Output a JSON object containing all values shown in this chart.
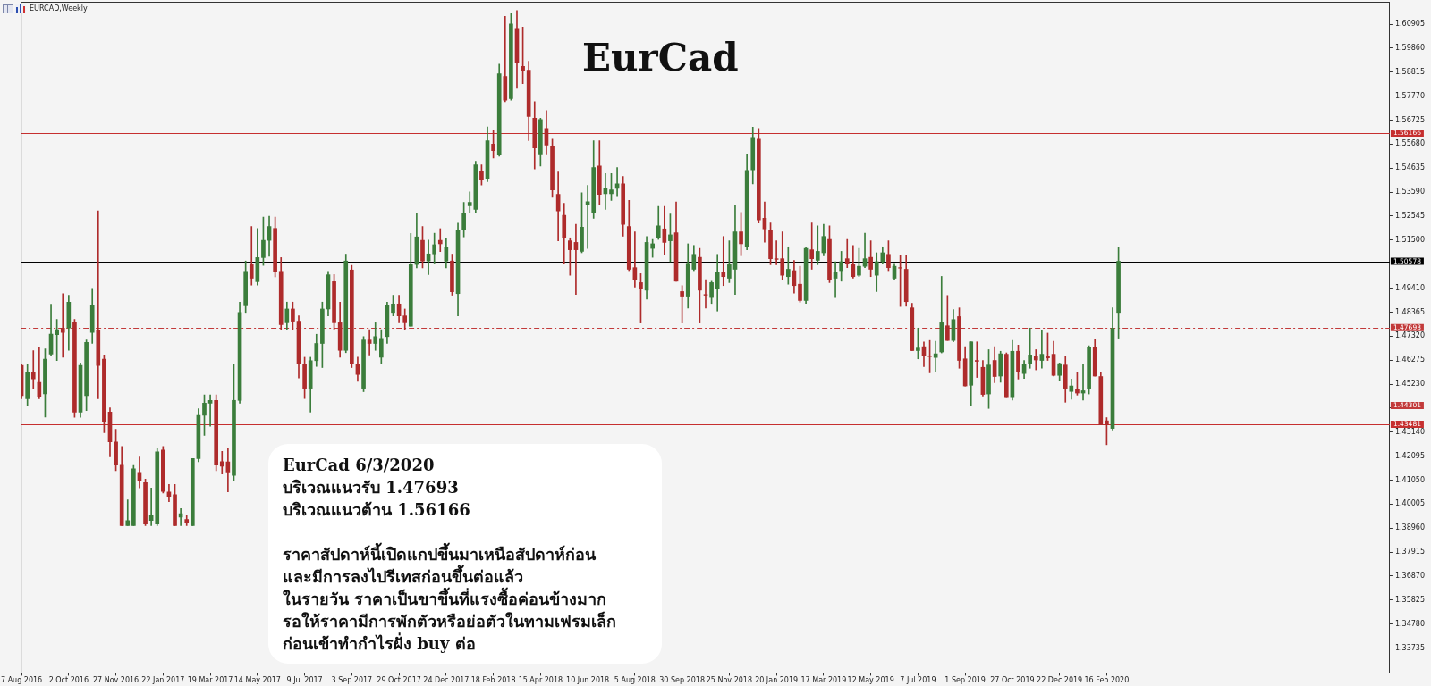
{
  "chart_data": {
    "type": "candlestick",
    "title": "EurCad",
    "subtitle": "EURCAD,Weekly",
    "annotations": [
      "EurCad 6/3/2020",
      "บริเวณแนวรับ 1.47693",
      "บริเวณแนวต้าน 1.56166",
      "ราคาสัปดาห์นี้เปิดแกปขึ้นมาเหนือสัปดาห์ก่อน",
      "และมีการลงไปรีเทสก่อนขึ้นต่อแล้ว",
      "ในรายวัน ราคาเป็นขาขึ้นที่แรงซื้อค่อนข้างมาก",
      "รอให้ราคามีการพักตัวหรือย่อตัวในทามเฟรมเล็ก",
      "ก่อนเข้าทำกำไรฝั่ง buy ต่อ"
    ],
    "x": [
      "2016-08-07",
      "2016-08-14",
      "2016-08-21",
      "2016-08-28",
      "2016-09-04",
      "2016-09-11",
      "2016-09-18",
      "2016-09-25",
      "2016-10-02",
      "2016-10-09",
      "2016-10-16",
      "2016-10-23",
      "2016-10-30",
      "2016-11-06",
      "2016-11-13",
      "2016-11-20",
      "2016-11-27",
      "2016-12-04",
      "2016-12-11",
      "2016-12-18",
      "2016-12-25",
      "2017-01-01",
      "2017-01-08",
      "2017-01-15",
      "2017-01-22",
      "2017-01-29",
      "2017-02-05",
      "2017-02-12",
      "2017-02-19",
      "2017-02-26",
      "2017-03-05",
      "2017-03-12",
      "2017-03-19",
      "2017-03-26",
      "2017-04-02",
      "2017-04-09",
      "2017-04-16",
      "2017-04-23",
      "2017-04-30",
      "2017-05-07",
      "2017-05-14",
      "2017-05-21",
      "2017-05-28",
      "2017-06-04",
      "2017-06-11",
      "2017-06-18",
      "2017-06-25",
      "2017-07-02",
      "2017-07-09",
      "2017-07-16",
      "2017-07-23",
      "2017-07-30",
      "2017-08-06",
      "2017-08-13",
      "2017-08-20",
      "2017-08-27",
      "2017-09-03",
      "2017-09-10",
      "2017-09-17",
      "2017-09-24",
      "2017-10-01",
      "2017-10-08",
      "2017-10-15",
      "2017-10-22",
      "2017-10-29",
      "2017-11-05",
      "2017-11-12",
      "2017-11-19",
      "2017-11-26",
      "2017-12-03",
      "2017-12-10",
      "2017-12-17",
      "2017-12-24",
      "2017-12-31",
      "2018-01-07",
      "2018-01-14",
      "2018-01-21",
      "2018-01-28",
      "2018-02-04",
      "2018-02-11",
      "2018-02-18",
      "2018-02-25",
      "2018-03-04",
      "2018-03-11",
      "2018-03-18",
      "2018-03-25",
      "2018-04-01",
      "2018-04-08",
      "2018-04-15",
      "2018-04-22",
      "2018-04-29",
      "2018-05-06",
      "2018-05-13",
      "2018-05-20",
      "2018-05-27",
      "2018-06-03",
      "2018-06-10",
      "2018-06-17",
      "2018-06-24",
      "2018-07-01",
      "2018-07-08",
      "2018-07-15",
      "2018-07-22",
      "2018-07-29",
      "2018-08-05",
      "2018-08-12",
      "2018-08-19",
      "2018-08-26",
      "2018-09-02",
      "2018-09-09",
      "2018-09-16",
      "2018-09-23",
      "2018-09-30",
      "2018-10-07",
      "2018-10-14",
      "2018-10-21",
      "2018-10-28",
      "2018-11-04",
      "2018-11-11",
      "2018-11-18",
      "2018-11-25",
      "2018-12-02",
      "2018-12-09",
      "2018-12-16",
      "2018-12-23",
      "2018-12-30",
      "2019-01-06",
      "2019-01-13",
      "2019-01-20",
      "2019-01-27",
      "2019-02-03",
      "2019-02-10",
      "2019-02-17",
      "2019-02-24",
      "2019-03-03",
      "2019-03-10",
      "2019-03-17",
      "2019-03-24",
      "2019-03-31",
      "2019-04-07",
      "2019-04-14",
      "2019-04-21",
      "2019-04-28",
      "2019-05-05",
      "2019-05-12",
      "2019-05-19",
      "2019-05-26",
      "2019-06-02",
      "2019-06-09",
      "2019-06-16",
      "2019-06-23",
      "2019-06-30",
      "2019-07-07",
      "2019-07-14",
      "2019-07-21",
      "2019-07-28",
      "2019-08-04",
      "2019-08-11",
      "2019-08-18",
      "2019-08-25",
      "2019-09-01",
      "2019-09-08",
      "2019-09-15",
      "2019-09-22",
      "2019-09-29",
      "2019-10-06",
      "2019-10-13",
      "2019-10-20",
      "2019-10-27",
      "2019-11-03",
      "2019-11-10",
      "2019-11-17",
      "2019-11-24",
      "2019-12-01",
      "2019-12-08",
      "2019-12-15",
      "2019-12-22",
      "2019-12-29",
      "2020-01-05",
      "2020-01-12",
      "2020-01-19",
      "2020-01-26",
      "2020-02-02",
      "2020-02-09",
      "2020-02-16",
      "2020-02-23",
      "2020-03-01"
    ],
    "ohlc": [
      [
        1.4604,
        1.4611,
        1.4459,
        1.4473
      ],
      [
        1.4459,
        1.4611,
        1.443,
        1.4575
      ],
      [
        1.4575,
        1.4669,
        1.4502,
        1.4546
      ],
      [
        1.4531,
        1.4683,
        1.4459,
        1.4466
      ],
      [
        1.4481,
        1.4676,
        1.4379,
        1.4632
      ],
      [
        1.4654,
        1.4871,
        1.4647,
        1.4741
      ],
      [
        1.4738,
        1.4805,
        1.4625,
        1.476
      ],
      [
        1.4767,
        1.4917,
        1.464,
        1.4748
      ],
      [
        1.4767,
        1.491,
        1.467,
        1.488
      ],
      [
        1.4792,
        1.4805,
        1.4378,
        1.4401
      ],
      [
        1.4401,
        1.4615,
        1.4378,
        1.4604
      ],
      [
        1.4473,
        1.4715,
        1.4408,
        1.4705
      ],
      [
        1.4748,
        1.494,
        1.47,
        1.4864
      ],
      [
        1.4755,
        1.5277,
        1.4459,
        1.4604
      ],
      [
        1.4632,
        1.465,
        1.4311,
        1.4357
      ],
      [
        1.4401,
        1.442,
        1.4206,
        1.4271
      ],
      [
        1.4271,
        1.4326,
        1.4146,
        1.417
      ],
      [
        1.417,
        1.4251,
        1.3907,
        1.3907
      ],
      [
        1.3907,
        1.4019,
        1.3907,
        1.3929
      ],
      [
        1.3907,
        1.4169,
        1.3907,
        1.4154
      ],
      [
        1.4139,
        1.4206,
        1.4071,
        1.4101
      ],
      [
        1.4094,
        1.4109,
        1.3907,
        1.3914
      ],
      [
        1.3929,
        1.4071,
        1.3907,
        1.3952
      ],
      [
        1.3914,
        1.4243,
        1.3907,
        1.4228
      ],
      [
        1.4236,
        1.4251,
        1.4049,
        1.4056
      ],
      [
        1.4053,
        1.4086,
        1.4011,
        1.4034
      ],
      [
        1.4041,
        1.4086,
        1.3907,
        1.3907
      ],
      [
        1.3944,
        1.3981,
        1.3907,
        1.3959
      ],
      [
        1.3933,
        1.3951,
        1.3907,
        1.3921
      ],
      [
        1.3907,
        1.4199,
        1.3907,
        1.4199
      ],
      [
        1.4199,
        1.4416,
        1.4185,
        1.4387
      ],
      [
        1.4387,
        1.4476,
        1.43,
        1.444
      ],
      [
        1.444,
        1.4476,
        1.434,
        1.4452
      ],
      [
        1.4452,
        1.4476,
        1.4146,
        1.417
      ],
      [
        1.4185,
        1.423,
        1.4131,
        1.4165
      ],
      [
        1.4184,
        1.4242,
        1.4054,
        1.414
      ],
      [
        1.4126,
        1.461,
        1.4101,
        1.4452
      ],
      [
        1.4452,
        1.488,
        1.444,
        1.4835
      ],
      [
        1.4864,
        1.5059,
        1.4835,
        1.5014
      ],
      [
        1.5044,
        1.5209,
        1.4954,
        1.4984
      ],
      [
        1.4969,
        1.5201,
        1.4954,
        1.5074
      ],
      [
        1.5074,
        1.525,
        1.504,
        1.5149
      ],
      [
        1.5149,
        1.5254,
        1.508,
        1.5209
      ],
      [
        1.5201,
        1.525,
        1.499,
        1.5014
      ],
      [
        1.5014,
        1.5074,
        1.476,
        1.4782
      ],
      [
        1.479,
        1.488,
        1.476,
        1.485
      ],
      [
        1.485,
        1.488,
        1.476,
        1.4797
      ],
      [
        1.4797,
        1.482,
        1.455,
        1.461
      ],
      [
        1.461,
        1.464,
        1.446,
        1.4505
      ],
      [
        1.4505,
        1.464,
        1.4401,
        1.4625
      ],
      [
        1.4625,
        1.474,
        1.46,
        1.47
      ],
      [
        1.47,
        1.488,
        1.4595,
        1.485
      ],
      [
        1.485,
        1.5014,
        1.482,
        1.4999
      ],
      [
        1.4969,
        1.5,
        1.476,
        1.479
      ],
      [
        1.479,
        1.488,
        1.464,
        1.467
      ],
      [
        1.467,
        1.5089,
        1.466,
        1.5059
      ],
      [
        1.502,
        1.504,
        1.4595,
        1.461
      ],
      [
        1.461,
        1.464,
        1.4535,
        1.4565
      ],
      [
        1.4505,
        1.473,
        1.449,
        1.4715
      ],
      [
        1.4715,
        1.476,
        1.465,
        1.47
      ],
      [
        1.47,
        1.479,
        1.467,
        1.473
      ],
      [
        1.464,
        1.476,
        1.461,
        1.4722
      ],
      [
        1.473,
        1.488,
        1.47,
        1.4865
      ],
      [
        1.4835,
        1.491,
        1.482,
        1.4872
      ],
      [
        1.4872,
        1.491,
        1.479,
        1.482
      ],
      [
        1.482,
        1.485,
        1.476,
        1.479
      ],
      [
        1.4775,
        1.5179,
        1.4775,
        1.5044
      ],
      [
        1.5044,
        1.5269,
        1.5029,
        1.5164
      ],
      [
        1.5149,
        1.5209,
        1.5029,
        1.5059
      ],
      [
        1.5059,
        1.515,
        1.5,
        1.509
      ],
      [
        1.509,
        1.518,
        1.505,
        1.513
      ],
      [
        1.5149,
        1.52,
        1.51,
        1.5134
      ],
      [
        1.5059,
        1.516,
        1.5029,
        1.5119
      ],
      [
        1.5059,
        1.5089,
        1.491,
        1.4925
      ],
      [
        1.4917,
        1.5224,
        1.482,
        1.5194
      ],
      [
        1.5194,
        1.5314,
        1.5164,
        1.5269
      ],
      [
        1.5299,
        1.536,
        1.527,
        1.5314
      ],
      [
        1.5284,
        1.5493,
        1.5269,
        1.5478
      ],
      [
        1.5448,
        1.5478,
        1.539,
        1.5411
      ],
      [
        1.5419,
        1.5643,
        1.5404,
        1.5583
      ],
      [
        1.5568,
        1.5628,
        1.5508,
        1.554
      ],
      [
        1.5523,
        1.5916,
        1.5515,
        1.5875
      ],
      [
        1.5863,
        1.6124,
        1.5753,
        1.5759
      ],
      [
        1.5766,
        1.6137,
        1.5759,
        1.6091
      ],
      [
        1.6072,
        1.615,
        1.5811,
        1.5922
      ],
      [
        1.5907,
        1.6078,
        1.5831,
        1.589
      ],
      [
        1.589,
        1.5929,
        1.5583,
        1.5688
      ],
      [
        1.5681,
        1.5753,
        1.546,
        1.5551
      ],
      [
        1.5525,
        1.5681,
        1.5473,
        1.5675
      ],
      [
        1.5636,
        1.5714,
        1.5525,
        1.5564
      ],
      [
        1.5557,
        1.559,
        1.5336,
        1.5368
      ],
      [
        1.5349,
        1.5447,
        1.5147,
        1.5277
      ],
      [
        1.5258,
        1.531,
        1.5049,
        1.516
      ],
      [
        1.5147,
        1.516,
        1.4997,
        1.5108
      ],
      [
        1.514,
        1.5219,
        1.4913,
        1.5108
      ],
      [
        1.5101,
        1.5356,
        1.5095,
        1.5206
      ],
      [
        1.5303,
        1.5388,
        1.5114,
        1.5317
      ],
      [
        1.5271,
        1.5583,
        1.5245,
        1.5466
      ],
      [
        1.5473,
        1.5583,
        1.5303,
        1.5349
      ],
      [
        1.5352,
        1.544,
        1.5284,
        1.5375
      ],
      [
        1.5352,
        1.544,
        1.5323,
        1.5369
      ],
      [
        1.5375,
        1.5466,
        1.5343,
        1.5395
      ],
      [
        1.5395,
        1.5427,
        1.5167,
        1.5219
      ],
      [
        1.5209,
        1.5323,
        1.5017,
        1.5023
      ],
      [
        1.503,
        1.5186,
        1.4945,
        1.4978
      ],
      [
        1.4965,
        1.5004,
        1.4789,
        1.4939
      ],
      [
        1.4932,
        1.5166,
        1.4893,
        1.514
      ],
      [
        1.5114,
        1.5153,
        1.5075,
        1.5134
      ],
      [
        1.516,
        1.5297,
        1.5153,
        1.5212
      ],
      [
        1.5199,
        1.5297,
        1.5088,
        1.514
      ],
      [
        1.5147,
        1.5264,
        1.5056,
        1.5173
      ],
      [
        1.5182,
        1.5316,
        1.4971,
        1.4971
      ],
      [
        1.4926,
        1.4952,
        1.4789,
        1.4906
      ],
      [
        1.4906,
        1.5134,
        1.4854,
        1.5049
      ],
      [
        1.5023,
        1.5127,
        1.5017,
        1.5088
      ],
      [
        1.5075,
        1.5114,
        1.4789,
        1.4932
      ],
      [
        1.4913,
        1.4978,
        1.4854,
        1.491
      ],
      [
        1.49,
        1.4971,
        1.4874,
        1.4965
      ],
      [
        1.4939,
        1.5088,
        1.4841,
        1.501
      ],
      [
        1.501,
        1.5166,
        1.4952,
        1.4991
      ],
      [
        1.4984,
        1.5147,
        1.4965,
        1.5043
      ],
      [
        1.5023,
        1.5303,
        1.4913,
        1.5186
      ],
      [
        1.5186,
        1.5271,
        1.5082,
        1.5134
      ],
      [
        1.5121,
        1.5525,
        1.5108,
        1.5453
      ],
      [
        1.5456,
        1.5642,
        1.5395,
        1.5597
      ],
      [
        1.559,
        1.5636,
        1.5225,
        1.5238
      ],
      [
        1.5245,
        1.5316,
        1.5141,
        1.5199
      ],
      [
        1.5193,
        1.5225,
        1.5043,
        1.5069
      ],
      [
        1.5069,
        1.5147,
        1.5043,
        1.5066
      ],
      [
        1.5069,
        1.5186,
        1.4978,
        1.4997
      ],
      [
        1.4991,
        1.5121,
        1.4958,
        1.5023
      ],
      [
        1.5017,
        1.5062,
        1.4919,
        1.4952
      ],
      [
        1.4958,
        1.5036,
        1.488,
        1.4887
      ],
      [
        1.4887,
        1.5121,
        1.4874,
        1.5114
      ],
      [
        1.5108,
        1.5225,
        1.5023,
        1.5069
      ],
      [
        1.5062,
        1.5212,
        1.5043,
        1.5101
      ],
      [
        1.5095,
        1.5219,
        1.5082,
        1.5166
      ],
      [
        1.5153,
        1.5212,
        1.4965,
        1.4978
      ],
      [
        1.4984,
        1.5056,
        1.49,
        1.501
      ],
      [
        1.5017,
        1.5101,
        1.4971,
        1.5056
      ],
      [
        1.5069,
        1.5153,
        1.503,
        1.5049
      ],
      [
        1.5043,
        1.5127,
        1.4984,
        1.4991
      ],
      [
        1.4997,
        1.5114,
        1.4991,
        1.5036
      ],
      [
        1.5036,
        1.518,
        1.503,
        1.5069
      ],
      [
        1.5075,
        1.5147,
        1.4991,
        1.5023
      ],
      [
        1.4997,
        1.5095,
        1.4926,
        1.5056
      ],
      [
        1.5056,
        1.5121,
        1.5049,
        1.5095
      ],
      [
        1.5088,
        1.5147,
        1.5017,
        1.503
      ],
      [
        1.4984,
        1.5049,
        1.4978,
        1.5036
      ],
      [
        1.503,
        1.5082,
        1.4861,
        1.5028
      ],
      [
        1.5023,
        1.5084,
        1.4862,
        1.4882
      ],
      [
        1.4855,
        1.4875,
        1.4669,
        1.4669
      ],
      [
        1.4669,
        1.4767,
        1.4633,
        1.468
      ],
      [
        1.4686,
        1.4707,
        1.4599,
        1.4646
      ],
      [
        1.4644,
        1.4713,
        1.4572,
        1.4643
      ],
      [
        1.4639,
        1.4709,
        1.4575,
        1.4655
      ],
      [
        1.4663,
        1.4992,
        1.4659,
        1.479
      ],
      [
        1.4777,
        1.4909,
        1.4713,
        1.4713
      ],
      [
        1.4713,
        1.4848,
        1.4707,
        1.4804
      ],
      [
        1.4817,
        1.4855,
        1.4592,
        1.4626
      ],
      [
        1.4633,
        1.4686,
        1.4515,
        1.4515
      ],
      [
        1.4518,
        1.4707,
        1.443,
        1.4707
      ],
      [
        1.4626,
        1.4707,
        1.4552,
        1.4622
      ],
      [
        1.4596,
        1.4626,
        1.4471,
        1.4478
      ],
      [
        1.448,
        1.4673,
        1.4417,
        1.4606
      ],
      [
        1.4626,
        1.4686,
        1.4529,
        1.4556
      ],
      [
        1.4558,
        1.4666,
        1.4531,
        1.4655
      ],
      [
        1.4653,
        1.4659,
        1.4464,
        1.4464
      ],
      [
        1.4464,
        1.4713,
        1.4453,
        1.4666
      ],
      [
        1.4666,
        1.4693,
        1.4545,
        1.4575
      ],
      [
        1.4569,
        1.4626,
        1.4548,
        1.461
      ],
      [
        1.461,
        1.4767,
        1.4592,
        1.465
      ],
      [
        1.4646,
        1.4673,
        1.4585,
        1.4628
      ],
      [
        1.4626,
        1.4758,
        1.4592,
        1.4653
      ],
      [
        1.4646,
        1.4745,
        1.4626,
        1.4637
      ],
      [
        1.4653,
        1.4709,
        1.4558,
        1.4561
      ],
      [
        1.4561,
        1.4615,
        1.4538,
        1.4612
      ],
      [
        1.4606,
        1.4646,
        1.4444,
        1.4505
      ],
      [
        1.4491,
        1.4545,
        1.4457,
        1.4515
      ],
      [
        1.4502,
        1.4574,
        1.4475,
        1.4484
      ],
      [
        1.4484,
        1.4609,
        1.4453,
        1.4494
      ],
      [
        1.4505,
        1.469,
        1.448,
        1.4682
      ],
      [
        1.4682,
        1.4717,
        1.4558,
        1.4558
      ],
      [
        1.4556,
        1.4574,
        1.4346,
        1.4346
      ],
      [
        1.4363,
        1.4377,
        1.4259,
        1.4346
      ],
      [
        1.433,
        1.4855,
        1.4323,
        1.4766
      ],
      [
        1.4835,
        1.5118,
        1.4723,
        1.5058
      ]
    ],
    "colors": [
      "#ae2b2b",
      "#3b7d3b",
      "#ae2b2b",
      "#ae2b2b",
      "#3b7d3b",
      "#3b7d3b",
      "#3b7d3b",
      "#ae2b2b",
      "#3b7d3b",
      "#ae2b2b",
      "#3b7d3b",
      "#3b7d3b",
      "#3b7d3b",
      "#ae2b2b",
      "#ae2b2b",
      "#ae2b2b",
      "#ae2b2b",
      "#ae2b2b",
      "#3b7d3b",
      "#3b7d3b",
      "#ae2b2b",
      "#ae2b2b",
      "#3b7d3b",
      "#3b7d3b",
      "#ae2b2b",
      "#ae2b2b",
      "#ae2b2b",
      "#3b7d3b",
      "#ae2b2b",
      "#3b7d3b",
      "#3b7d3b",
      "#3b7d3b",
      "#3b7d3b",
      "#ae2b2b",
      "#ae2b2b",
      "#ae2b2b",
      "#3b7d3b",
      "#3b7d3b",
      "#3b7d3b",
      "#ae2b2b",
      "#3b7d3b",
      "#3b7d3b",
      "#3b7d3b",
      "#ae2b2b",
      "#ae2b2b",
      "#3b7d3b",
      "#ae2b2b",
      "#ae2b2b",
      "#ae2b2b",
      "#3b7d3b",
      "#3b7d3b",
      "#3b7d3b",
      "#3b7d3b",
      "#ae2b2b",
      "#ae2b2b",
      "#3b7d3b",
      "#ae2b2b",
      "#ae2b2b",
      "#3b7d3b",
      "#ae2b2b",
      "#3b7d3b",
      "#3b7d3b",
      "#3b7d3b",
      "#3b7d3b",
      "#ae2b2b",
      "#ae2b2b",
      "#3b7d3b",
      "#3b7d3b",
      "#ae2b2b",
      "#3b7d3b",
      "#3b7d3b",
      "#ae2b2b",
      "#3b7d3b",
      "#ae2b2b",
      "#3b7d3b",
      "#3b7d3b",
      "#3b7d3b",
      "#3b7d3b",
      "#ae2b2b",
      "#3b7d3b",
      "#ae2b2b",
      "#3b7d3b",
      "#ae2b2b",
      "#3b7d3b",
      "#ae2b2b",
      "#ae2b2b",
      "#ae2b2b",
      "#ae2b2b",
      "#3b7d3b",
      "#ae2b2b",
      "#ae2b2b",
      "#ae2b2b",
      "#ae2b2b",
      "#ae2b2b",
      "#ae2b2b",
      "#3b7d3b",
      "#3b7d3b",
      "#3b7d3b",
      "#ae2b2b",
      "#3b7d3b",
      "#3b7d3b",
      "#3b7d3b",
      "#ae2b2b",
      "#ae2b2b",
      "#ae2b2b",
      "#ae2b2b",
      "#3b7d3b",
      "#3b7d3b",
      "#3b7d3b",
      "#ae2b2b",
      "#3b7d3b",
      "#ae2b2b",
      "#ae2b2b",
      "#3b7d3b",
      "#3b7d3b",
      "#ae2b2b",
      "#ae2b2b",
      "#3b7d3b",
      "#3b7d3b",
      "#ae2b2b",
      "#3b7d3b",
      "#3b7d3b",
      "#ae2b2b",
      "#3b7d3b",
      "#3b7d3b",
      "#ae2b2b",
      "#ae2b2b",
      "#ae2b2b",
      "#ae2b2b",
      "#ae2b2b",
      "#3b7d3b",
      "#ae2b2b",
      "#ae2b2b",
      "#3b7d3b",
      "#ae2b2b",
      "#3b7d3b",
      "#3b7d3b",
      "#ae2b2b",
      "#3b7d3b",
      "#3b7d3b",
      "#ae2b2b",
      "#ae2b2b",
      "#3b7d3b",
      "#3b7d3b",
      "#ae2b2b",
      "#3b7d3b",
      "#3b7d3b",
      "#ae2b2b",
      "#3b7d3b",
      "#ae2b2b",
      "#ae2b2b",
      "#ae2b2b",
      "#3b7d3b",
      "#ae2b2b",
      "#ae2b2b",
      "#3b7d3b",
      "#3b7d3b",
      "#ae2b2b",
      "#3b7d3b",
      "#ae2b2b",
      "#ae2b2b",
      "#3b7d3b",
      "#ae2b2b",
      "#ae2b2b",
      "#3b7d3b",
      "#ae2b2b",
      "#3b7d3b",
      "#ae2b2b",
      "#3b7d3b",
      "#ae2b2b",
      "#3b7d3b",
      "#3b7d3b",
      "#ae2b2b",
      "#3b7d3b",
      "#ae2b2b",
      "#ae2b2b",
      "#3b7d3b",
      "#ae2b2b",
      "#3b7d3b",
      "#ae2b2b",
      "#3b7d3b",
      "#3b7d3b",
      "#ae2b2b",
      "#ae2b2b",
      "#ae2b2b",
      "#3b7d3b",
      "#3b7d3b"
    ],
    "xlim": [
      "2016-08-06",
      "2021-01-17"
    ],
    "xticks": [
      {
        "value": "2016-08-07",
        "label": "7 Aug 2016"
      },
      {
        "value": "2016-10-02",
        "label": "2 Oct 2016"
      },
      {
        "value": "2016-11-27",
        "label": "27 Nov 2016"
      },
      {
        "value": "2017-01-22",
        "label": "22 Jan 2017"
      },
      {
        "value": "2017-03-19",
        "label": "19 Mar 2017"
      },
      {
        "value": "2017-05-14",
        "label": "14 May 2017"
      },
      {
        "value": "2017-07-09",
        "label": "9 Jul 2017"
      },
      {
        "value": "2017-09-03",
        "label": "3 Sep 2017"
      },
      {
        "value": "2017-10-29",
        "label": "29 Oct 2017"
      },
      {
        "value": "2017-12-24",
        "label": "24 Dec 2017"
      },
      {
        "value": "2018-02-18",
        "label": "18 Feb 2018"
      },
      {
        "value": "2018-04-15",
        "label": "15 Apr 2018"
      },
      {
        "value": "2018-06-10",
        "label": "10 Jun 2018"
      },
      {
        "value": "2018-08-05",
        "label": "5 Aug 2018"
      },
      {
        "value": "2018-09-30",
        "label": "30 Sep 2018"
      },
      {
        "value": "2018-11-25",
        "label": "25 Nov 2018"
      },
      {
        "value": "2019-01-20",
        "label": "20 Jan 2019"
      },
      {
        "value": "2019-03-17",
        "label": "17 Mar 2019"
      },
      {
        "value": "2019-05-12",
        "label": "12 May 2019"
      },
      {
        "value": "2019-07-07",
        "label": "7 Jul 2019"
      },
      {
        "value": "2019-09-01",
        "label": "1 Sep 2019"
      },
      {
        "value": "2019-10-27",
        "label": "27 Oct 2019"
      },
      {
        "value": "2019-12-22",
        "label": "22 Dec 2019"
      },
      {
        "value": "2020-02-16",
        "label": "16 Feb 2020"
      }
    ],
    "ylim": [
      1.3265,
      1.6188
    ],
    "yticks": [
      1.33735,
      {
        "value": 1.3478,
        "label": "1.34780"
      },
      1.35825,
      {
        "value": 1.3687,
        "label": "1.36870"
      },
      1.37915,
      {
        "value": 1.3896,
        "label": "1.38960"
      },
      1.40005,
      {
        "value": 1.4105,
        "label": "1.41050"
      },
      1.42095,
      {
        "value": 1.4314,
        "label": "1.43140"
      },
      {
        "value": 1.44185,
        "label": null
      },
      {
        "value": 1.4523,
        "label": "1.45230"
      },
      1.46275,
      {
        "value": 1.4732,
        "label": "1.47320"
      },
      1.48365,
      {
        "value": 1.4941,
        "label": "1.49410"
      },
      {
        "value": 1.50455,
        "label": null
      },
      {
        "value": 1.515,
        "label": "1.51500"
      },
      1.52545,
      {
        "value": 1.5359,
        "label": "1.53590"
      },
      1.54635,
      {
        "value": 1.5568,
        "label": "1.55680"
      },
      1.56725,
      {
        "value": 1.5777,
        "label": "1.57770"
      },
      1.58815,
      {
        "value": 1.5986,
        "label": "1.59860"
      },
      1.60905
    ],
    "ref_lines": [
      {
        "axis": "y",
        "value": 1.56166,
        "label": "1.56166",
        "color": "#c62f2f",
        "line_style": "solid"
      },
      {
        "axis": "y",
        "value": 1.50578,
        "label": "1.50578",
        "color": "#000000",
        "line_style": "solid"
      },
      {
        "axis": "y",
        "value": 1.47693,
        "label": "1.47693",
        "color": "#c23a3a",
        "line_style": "dashed"
      },
      {
        "axis": "y",
        "value": 1.44301,
        "label": "1.44301",
        "color": "#c23a3a",
        "line_style": "dashed"
      },
      {
        "axis": "y",
        "value": 1.43481,
        "label": "1.43481",
        "color": "#c62f2f",
        "line_style": "solid"
      }
    ]
  }
}
